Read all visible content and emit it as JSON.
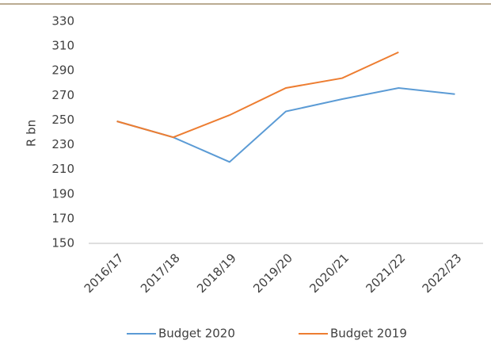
{
  "chart_data": {
    "type": "line",
    "y_label": "R bn",
    "categories": [
      "2016/17",
      "2017/18",
      "2018/19",
      "2019/20",
      "2020/21",
      "2021/22",
      "2022/23"
    ],
    "series": [
      {
        "name": "Budget 2020",
        "color": "#5b9bd5",
        "values": [
          249,
          236,
          216,
          257,
          267,
          276,
          271
        ]
      },
      {
        "name": "Budget 2019",
        "color": "#ed7d31",
        "values": [
          249,
          236,
          254,
          276,
          284,
          305,
          null
        ]
      }
    ],
    "ylim": [
      150,
      330
    ],
    "yticks": [
      150,
      170,
      190,
      210,
      230,
      250,
      270,
      290,
      310,
      330
    ],
    "grid": false,
    "legend": "bottom"
  }
}
